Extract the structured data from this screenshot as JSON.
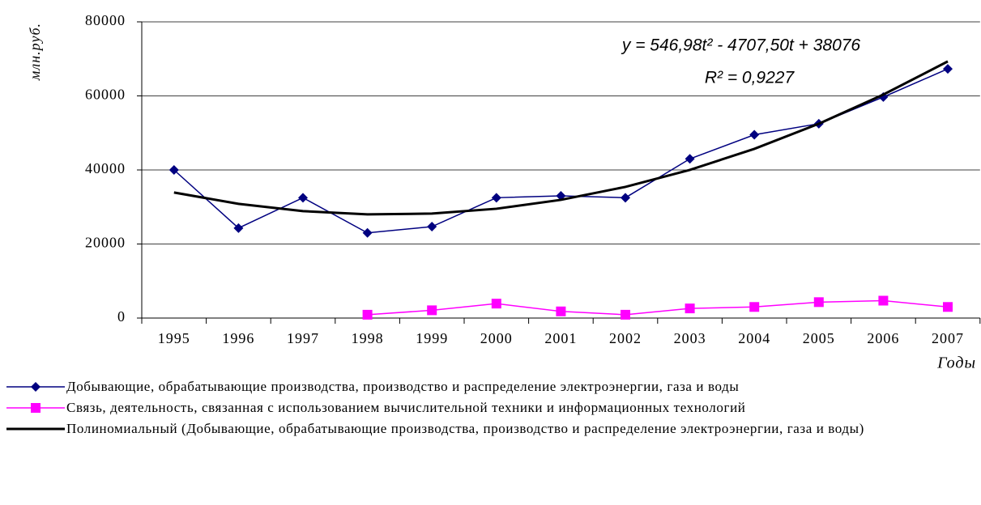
{
  "chart_data": {
    "type": "line",
    "y_label": "млн.руб.",
    "x_label": "Годы",
    "annotations": [
      "y = 546,98t² - 4707,50t + 38076",
      "R² = 0,9227"
    ],
    "categories": [
      "1995",
      "1996",
      "1997",
      "1998",
      "1999",
      "2000",
      "2001",
      "2002",
      "2003",
      "2004",
      "2005",
      "2006",
      "2007"
    ],
    "series": [
      {
        "name": "Добывающие, обрабатывающие производства, производство и распределение электроэнергии, газа и воды",
        "color": "#000080",
        "marker": "diamond",
        "width": 1.5,
        "values": [
          40000,
          24300,
          32500,
          23000,
          24700,
          32500,
          33000,
          32500,
          43000,
          49500,
          52500,
          59700,
          67300
        ]
      },
      {
        "name": "Связь, деятельность, связанная с использованием вычислительной техники и информационных технологий",
        "color": "#ff00ff",
        "marker": "square",
        "width": 1.5,
        "values": [
          null,
          null,
          null,
          900,
          2100,
          3900,
          1800,
          900,
          2600,
          3000,
          4300,
          4700,
          3000
        ]
      },
      {
        "name": "Полиномиальный (Добывающие, обрабатывающие производства, производство и распределение электроэнергии, газа и воды)",
        "color": "#000000",
        "marker": "none",
        "width": 3,
        "values": [
          33915,
          30849,
          28876,
          27998,
          28213,
          29522,
          31925,
          35423,
          40013,
          45699,
          52478,
          60351,
          69318
        ]
      }
    ],
    "ylim": [
      0,
      80000
    ],
    "yticks": [
      0,
      20000,
      40000,
      60000,
      80000
    ],
    "grid": true
  }
}
